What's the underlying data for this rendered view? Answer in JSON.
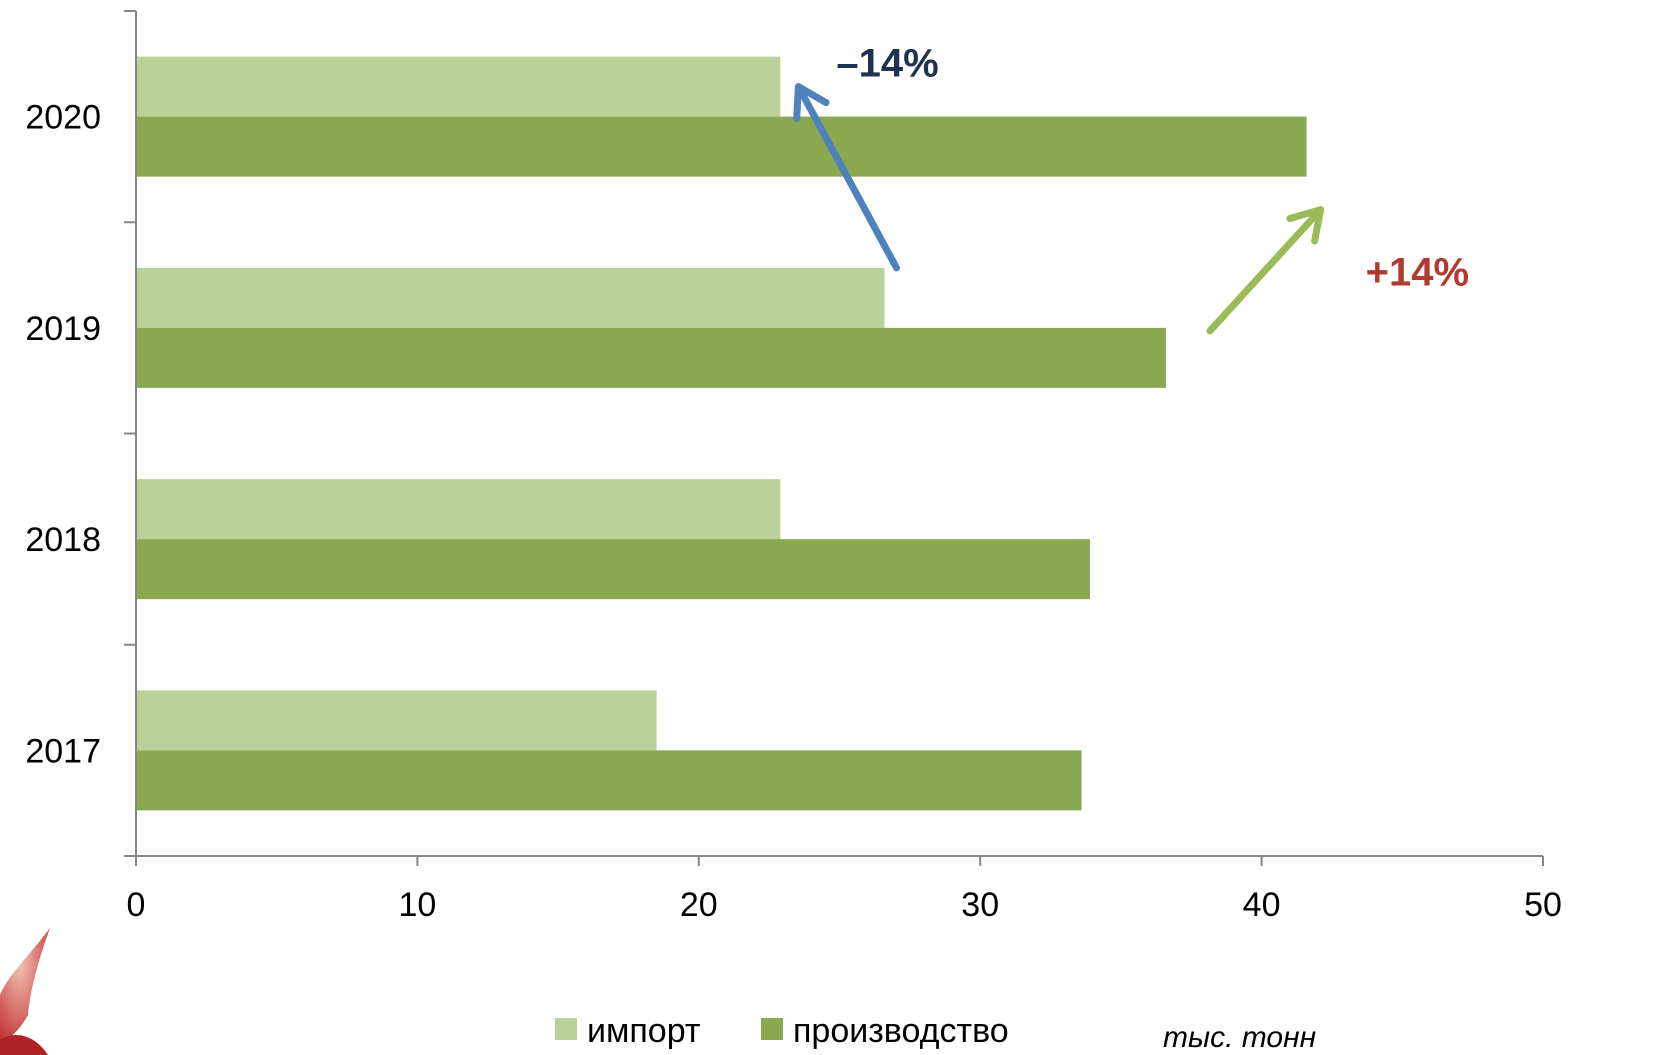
{
  "chart_data": {
    "type": "bar",
    "orientation": "horizontal",
    "categories": [
      "2017",
      "2018",
      "2019",
      "2020"
    ],
    "series": [
      {
        "name": "импорт",
        "values": [
          18.5,
          22.9,
          26.6,
          22.9
        ],
        "color": "#bad19a"
      },
      {
        "name": "производство",
        "values": [
          33.6,
          33.9,
          36.6,
          41.6
        ],
        "color": "#89a84f"
      }
    ],
    "xlim": [
      0,
      50
    ],
    "xticks": [
      "0",
      "10",
      "20",
      "30",
      "40",
      "50"
    ],
    "unit": "тыс. тонн",
    "legend_position": "bottom",
    "grid": false,
    "annotations": [
      {
        "label": "–14%",
        "color": "#1f3150",
        "arrow_color": "#4f81bd",
        "from_category": "2019",
        "to_category": "2020",
        "series": "импорт"
      },
      {
        "label": "+14%",
        "color": "#b03a2e",
        "arrow_color": "#9bbb59",
        "from_category": "2019",
        "to_category": "2020",
        "series": "производство"
      }
    ]
  }
}
